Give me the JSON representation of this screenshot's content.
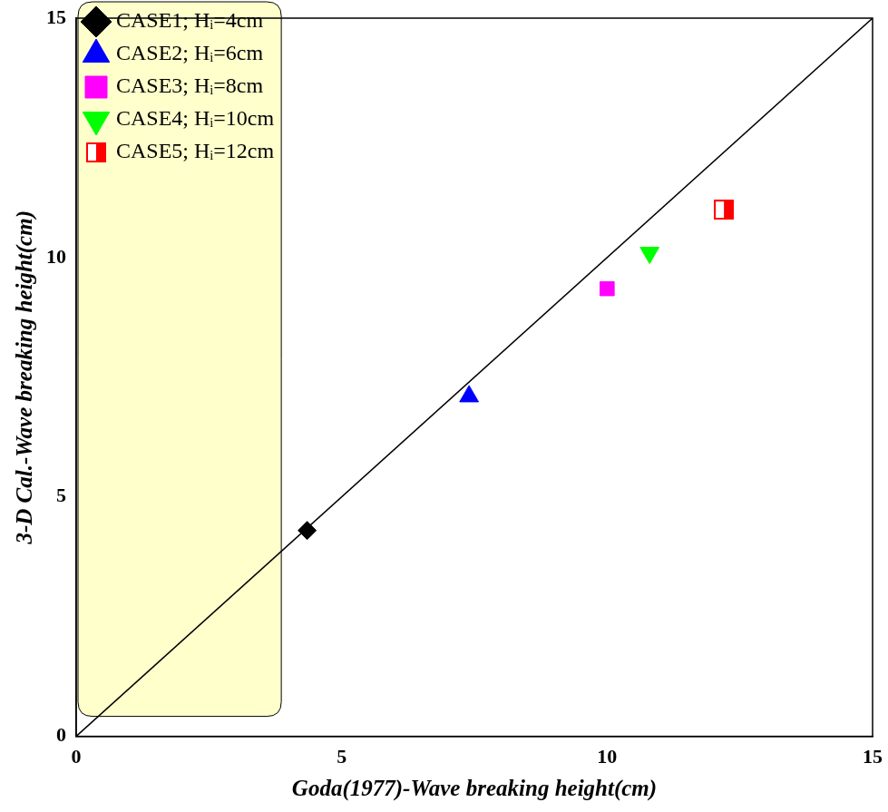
{
  "chart_data": {
    "type": "scatter",
    "xlabel": "Goda(1977)-Wave breaking height(cm)",
    "ylabel": "3-D Cal.-Wave breaking height(cm)",
    "xlim": [
      0,
      15
    ],
    "ylim": [
      0,
      15
    ],
    "xticks": [
      0,
      5,
      10,
      15
    ],
    "yticks": [
      0,
      5,
      10,
      15
    ],
    "grid": false,
    "legend": "upper left",
    "series": [
      {
        "name": "CASE1; Hᵢ=4cm",
        "color": "#000000",
        "marker": "diamond",
        "x": [
          4.35
        ],
        "values": [
          4.3
        ]
      },
      {
        "name": "CASE2; Hᵢ=6cm",
        "color": "#0000ff",
        "marker": "triangle",
        "x": [
          7.4
        ],
        "values": [
          7.1
        ]
      },
      {
        "name": "CASE3; Hᵢ=8cm",
        "color": "#ff00ff",
        "marker": "square",
        "x": [
          10.0
        ],
        "values": [
          9.35
        ]
      },
      {
        "name": "CASE4; Hᵢ=10cm",
        "color": "#00ff00",
        "marker": "triangle_down",
        "x": [
          10.8
        ],
        "values": [
          10.1
        ]
      },
      {
        "name": "CASE5; Hᵢ=12cm",
        "color": "#ff0000",
        "marker": "half_square",
        "x": [
          12.2
        ],
        "values": [
          11.0
        ]
      }
    ]
  }
}
